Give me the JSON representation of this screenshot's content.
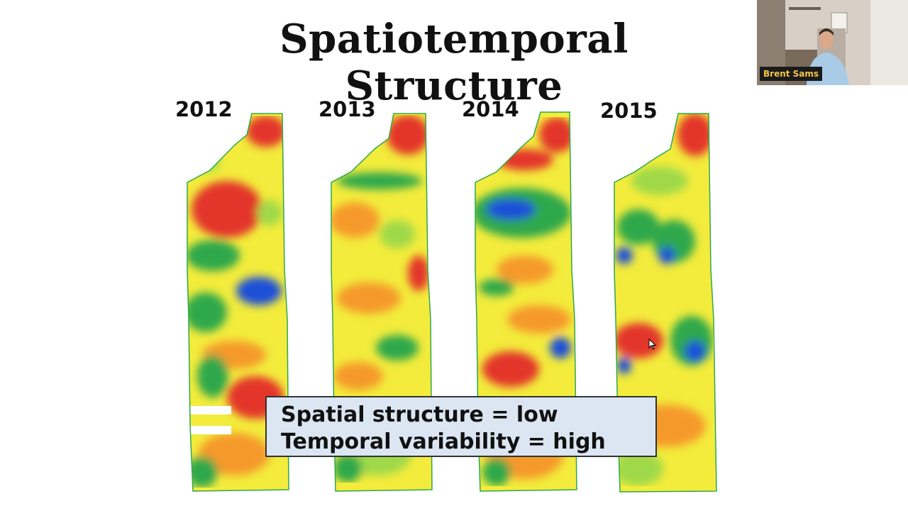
{
  "slide": {
    "title": "Spatiotemporal Structure",
    "years": [
      "2012",
      "2013",
      "2014",
      "2015"
    ],
    "caption": {
      "line1": "Spatial structure = low",
      "line2": "Temporal variability = high"
    },
    "colorscale": [
      "#1f4fd8",
      "#2fa84b",
      "#9fd94a",
      "#f3ec3c",
      "#f59a2c",
      "#e3362a"
    ]
  },
  "video": {
    "presenter_name": "Brent Sams"
  }
}
